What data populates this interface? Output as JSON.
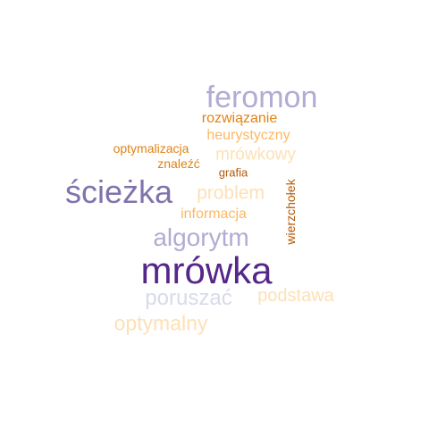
{
  "words": {
    "feromon": "feromon",
    "rozwiazanie": "rozwiązanie",
    "heurystyczny": "heurystyczny",
    "optymalizacja": "optymalizacja",
    "mrowkowy": "mrówkowy",
    "znalezc": "znaleźć",
    "grafia": "grafia",
    "sciezka": "ścieżka",
    "problem": "problem",
    "wierzcholek": "wierzchołek",
    "informacja": "informacja",
    "algorytm": "algorytm",
    "mrowka": "mrówka",
    "poruszac": "poruszać",
    "podstawa": "podstawa",
    "optymalny": "optymalny"
  },
  "palette": {
    "dark_purple": "#542788",
    "purple": "#8073ac",
    "light_purple": "#b2abd2",
    "pale_purple": "#d8daeb",
    "pale_orange": "#fee0b6",
    "light_orange": "#fdb863",
    "orange": "#e08214",
    "dark_orange": "#b35806"
  }
}
